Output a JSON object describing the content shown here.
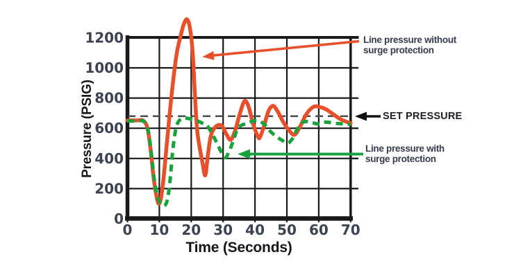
{
  "chart_data": {
    "type": "line",
    "title": "",
    "xlabel": "Time (Seconds)",
    "ylabel": "Pressure (PSIG)",
    "xlim": [
      0,
      70
    ],
    "ylim": [
      0,
      1240
    ],
    "xticks": [
      0,
      10,
      20,
      30,
      40,
      50,
      60,
      70
    ],
    "yticks": [
      0,
      200,
      400,
      600,
      800,
      1000,
      1200
    ],
    "grid": true,
    "legend_position": "right-annotations",
    "set_pressure": 680,
    "series": [
      {
        "name": "Line pressure without surge protection",
        "color": "#e8502b",
        "style": "solid",
        "points": [
          [
            0,
            652
          ],
          [
            3,
            652
          ],
          [
            5,
            650
          ],
          [
            6.3,
            598
          ],
          [
            7.3,
            450
          ],
          [
            8.3,
            255
          ],
          [
            9.2,
            140
          ],
          [
            9.8,
            100
          ],
          [
            10.5,
            135
          ],
          [
            11.3,
            265
          ],
          [
            12.1,
            440
          ],
          [
            13,
            645
          ],
          [
            14.2,
            890
          ],
          [
            15.5,
            1100
          ],
          [
            16.6,
            1205
          ],
          [
            17.6,
            1285
          ],
          [
            18.6,
            1322
          ],
          [
            19.5,
            1275
          ],
          [
            20.4,
            1120
          ],
          [
            21.1,
            850
          ],
          [
            21.8,
            600
          ],
          [
            22.6,
            480
          ],
          [
            23.5,
            375
          ],
          [
            24.4,
            288
          ],
          [
            25.2,
            420
          ],
          [
            26.1,
            545
          ],
          [
            27.2,
            598
          ],
          [
            28.6,
            622
          ],
          [
            29.8,
            610
          ],
          [
            31.1,
            558
          ],
          [
            32.4,
            524
          ],
          [
            33.8,
            586
          ],
          [
            35.2,
            692
          ],
          [
            36.7,
            780
          ],
          [
            38,
            742
          ],
          [
            39.4,
            630
          ],
          [
            40.8,
            550
          ],
          [
            41.5,
            538
          ],
          [
            42.8,
            612
          ],
          [
            44.2,
            712
          ],
          [
            45.6,
            748
          ],
          [
            47,
            716
          ],
          [
            48.7,
            648
          ],
          [
            50.6,
            588
          ],
          [
            52.4,
            557
          ],
          [
            54.2,
            614
          ],
          [
            56.2,
            696
          ],
          [
            58.4,
            742
          ],
          [
            60.4,
            740
          ],
          [
            62.4,
            724
          ],
          [
            64.6,
            692
          ],
          [
            67,
            658
          ],
          [
            70,
            633
          ]
        ]
      },
      {
        "name": "Line pressure with surge protection",
        "color": "#17a23b",
        "style": "dashed",
        "points": [
          [
            0,
            648
          ],
          [
            3,
            648
          ],
          [
            5,
            647
          ],
          [
            6.4,
            592
          ],
          [
            7.4,
            450
          ],
          [
            8.4,
            262
          ],
          [
            9.4,
            150
          ],
          [
            10.4,
            100
          ],
          [
            11.6,
            87
          ],
          [
            12.5,
            125
          ],
          [
            13.3,
            240
          ],
          [
            14.1,
            430
          ],
          [
            14.9,
            565
          ],
          [
            15.7,
            632
          ],
          [
            16.6,
            658
          ],
          [
            18,
            668
          ],
          [
            20,
            660
          ],
          [
            22,
            648
          ],
          [
            24,
            628
          ],
          [
            25,
            618
          ],
          [
            26.5,
            565
          ],
          [
            28,
            505
          ],
          [
            29.5,
            440
          ],
          [
            30.7,
            406
          ],
          [
            32,
            452
          ],
          [
            33.3,
            525
          ],
          [
            34.6,
            600
          ],
          [
            36,
            622
          ],
          [
            37.5,
            632
          ],
          [
            39,
            645
          ],
          [
            41,
            651
          ],
          [
            43,
            625
          ],
          [
            44.8,
            580
          ],
          [
            46.4,
            550
          ],
          [
            48,
            526
          ],
          [
            49.6,
            508
          ],
          [
            50.6,
            504
          ],
          [
            51.9,
            536
          ],
          [
            53.2,
            592
          ],
          [
            54.6,
            632
          ],
          [
            56,
            645
          ],
          [
            58,
            636
          ],
          [
            60,
            629
          ],
          [
            62,
            640
          ],
          [
            64,
            637
          ],
          [
            66,
            631
          ],
          [
            68,
            629
          ],
          [
            70,
            626
          ]
        ]
      }
    ]
  },
  "annotations": {
    "without": {
      "line1": "Line pressure without",
      "line2": "surge protection"
    },
    "with_label": {
      "line1": "Line pressure with",
      "line2": "surge protection"
    },
    "set_pressure_label": "SET PRESSURE"
  },
  "colors": {
    "without_surge": "#e8502b",
    "with_surge": "#17a23b",
    "set_pressure_line": "#4b4b4b",
    "grid": "#1a1a1a",
    "tick_text": "#3b4250",
    "annotation_text": "#333b4c"
  }
}
